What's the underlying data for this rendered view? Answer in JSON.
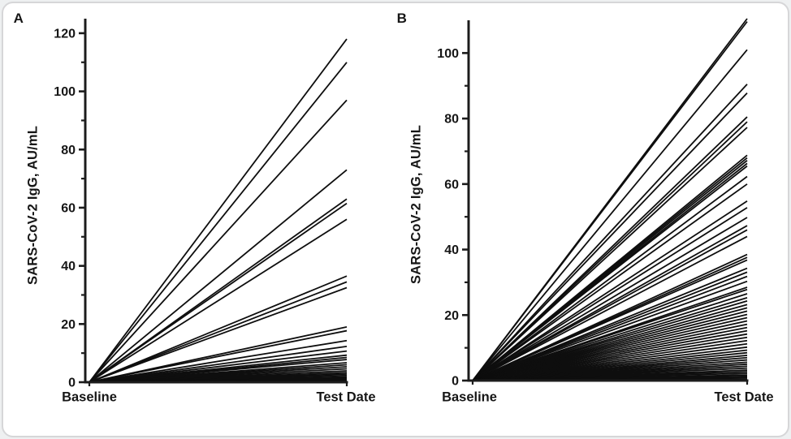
{
  "figure": {
    "background": "#eef0f1",
    "card_background": "#ffffff",
    "card_border": "#d6d6d8",
    "line_color": "#0e0e0e",
    "axis_color": "#1c1c1c",
    "text_color": "#161616"
  },
  "chart_data": [
    {
      "type": "line",
      "panel_label": "A",
      "ylabel": "SARS-CoV-2 IgG, AU/mL",
      "categories": [
        "Baseline",
        "Test Date"
      ],
      "ylim": [
        0,
        125
      ],
      "yticks_major": [
        0,
        20,
        40,
        60,
        80,
        100,
        120
      ],
      "yticks_minor": [
        10,
        30,
        50,
        70,
        90,
        110
      ],
      "grid": false,
      "legend": "none",
      "baseline_value": 0,
      "test_date_values": [
        118,
        110,
        97,
        73,
        63,
        61.5,
        56,
        36.5,
        34.5,
        32.5,
        19,
        17.7,
        14.3,
        12.3,
        10.7,
        9.3,
        8.5,
        7.8,
        6.7,
        6.0,
        5.3,
        4.6,
        3.9,
        3.3,
        2.8,
        2.3,
        1.8,
        1.4,
        1.0,
        0.6,
        0.3
      ]
    },
    {
      "type": "line",
      "panel_label": "B",
      "ylabel": "SARS-CoV-2 IgG, AU/mL",
      "categories": [
        "Baseline",
        "Test Date"
      ],
      "ylim": [
        0,
        110
      ],
      "yticks_major": [
        0,
        20,
        40,
        60,
        80,
        100
      ],
      "yticks_minor": [
        10,
        30,
        50,
        70,
        90
      ],
      "grid": false,
      "legend": "none",
      "baseline_value": 0,
      "test_date_values": [
        110.5,
        109.6,
        101,
        90.5,
        87.8,
        80.5,
        79,
        77.3,
        68.8,
        68.0,
        67.2,
        66.3,
        65.5,
        62.3,
        60.0,
        54.8,
        52.8,
        49.8,
        47.3,
        46.0,
        44.0,
        38.5,
        37.6,
        36.8,
        34.3,
        33.1,
        31.8,
        30.3,
        28.5,
        27.8,
        26.5,
        25.3,
        24.3,
        23.2,
        22.2,
        21.2,
        20.2,
        19.2,
        18.2,
        17.2,
        16.2,
        15.2,
        14.2,
        13.2,
        12.2,
        11.2,
        10.2,
        9.3,
        8.5,
        7.7,
        7.0,
        6.3,
        5.6,
        5.0,
        4.4,
        3.8,
        3.2,
        2.7,
        2.2,
        1.7,
        1.3,
        0.9,
        0.5,
        0.2
      ]
    }
  ]
}
